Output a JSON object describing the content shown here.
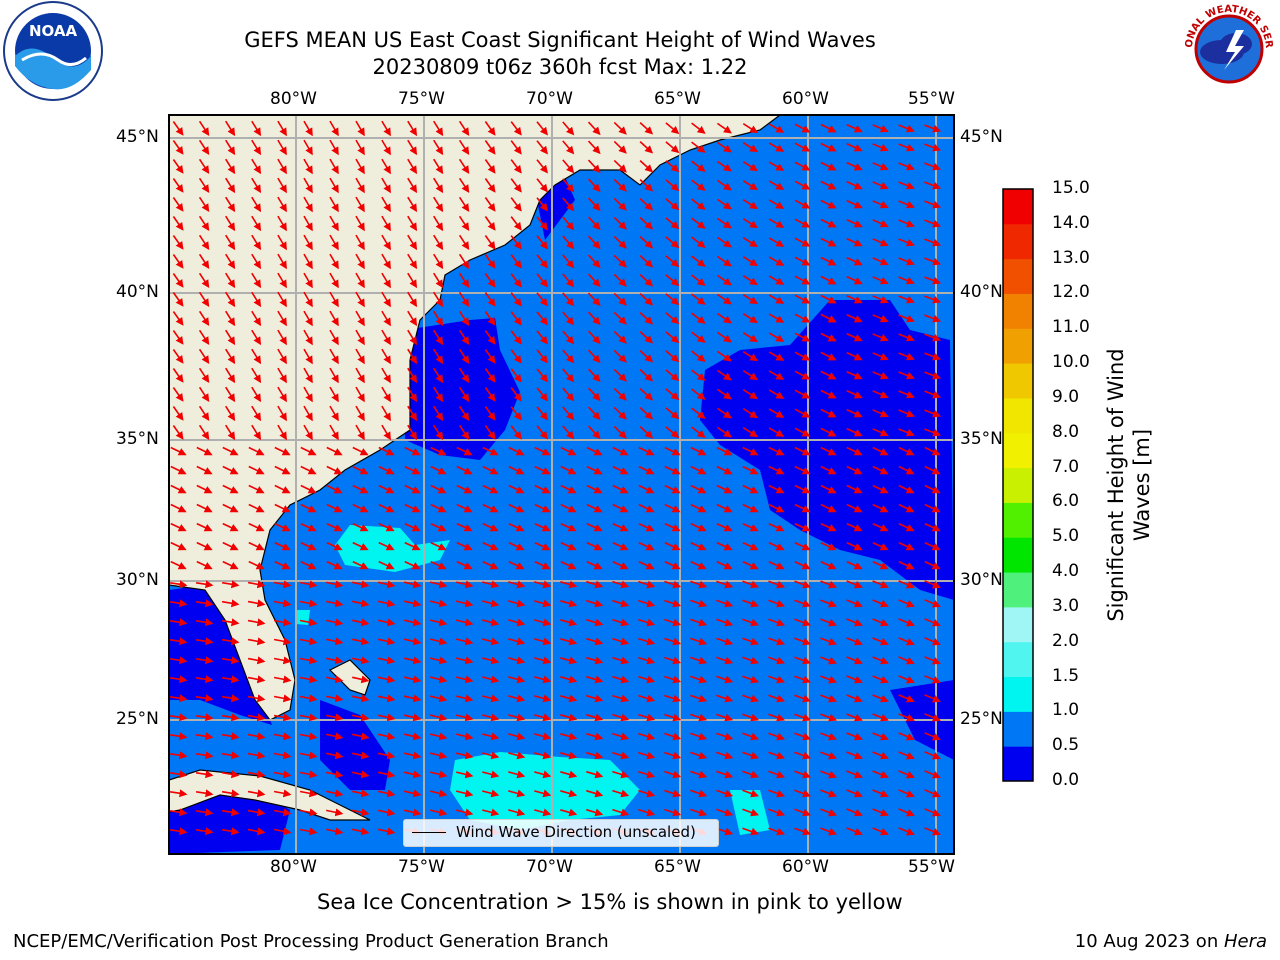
{
  "header": {
    "title_line1": "GEFS MEAN US East Coast Significant Height of Wind Waves",
    "title_line2": "20230809 t06z 360h fcst   Max: 1.22"
  },
  "logos": {
    "left_icon": "noaa-logo-icon",
    "left_text": "NOAA",
    "right_icon": "national-weather-service-logo-icon",
    "right_text": "NATIONAL WEATHER SERVICE"
  },
  "map": {
    "lon_labels_top": [
      "80°W",
      "75°W",
      "70°W",
      "65°W",
      "60°W",
      "55°W"
    ],
    "lon_labels_bottom": [
      "80°W",
      "75°W",
      "70°W",
      "65°W",
      "60°W",
      "55°W"
    ],
    "lat_labels_left": [
      "45°N",
      "40°N",
      "35°N",
      "30°N",
      "25°N"
    ],
    "lat_labels_right": [
      "45°N",
      "40°N",
      "35°N",
      "30°N",
      "25°N"
    ],
    "legend_label": "Wind Wave Direction (unscaled)",
    "colors": {
      "land": "#efeedc",
      "wave_0_0p5": "#0000f0",
      "wave_0p5_1": "#0078f5",
      "wave_1_1p5": "#00f5f0",
      "arrows": "#f00000",
      "grid": "#b0b0b0"
    }
  },
  "colorbar": {
    "title": "Significant Height of Wind Waves [m]",
    "title_line1": "Significant Height of Wind",
    "title_line2": "Waves [m]",
    "levels": [
      "0.0",
      "0.5",
      "1.0",
      "1.5",
      "2.0",
      "3.0",
      "4.0",
      "5.0",
      "6.0",
      "7.0",
      "8.0",
      "9.0",
      "10.0",
      "11.0",
      "12.0",
      "13.0",
      "14.0",
      "15.0"
    ],
    "colors": [
      "#0000f0",
      "#0078f5",
      "#00f5f0",
      "#50f5f0",
      "#a0f5f5",
      "#50f07d",
      "#00e600",
      "#50f000",
      "#c8f000",
      "#f0f000",
      "#f0e600",
      "#f0c800",
      "#f0a000",
      "#f08200",
      "#f05000",
      "#f02800",
      "#f00000"
    ]
  },
  "caption": "Sea Ice Concentration > 15% is shown in pink to yellow",
  "footer": {
    "left": "NCEP/EMC/Verification Post Processing Product Generation Branch",
    "right_date": "10 Aug 2023 on ",
    "right_host": "Hera"
  }
}
